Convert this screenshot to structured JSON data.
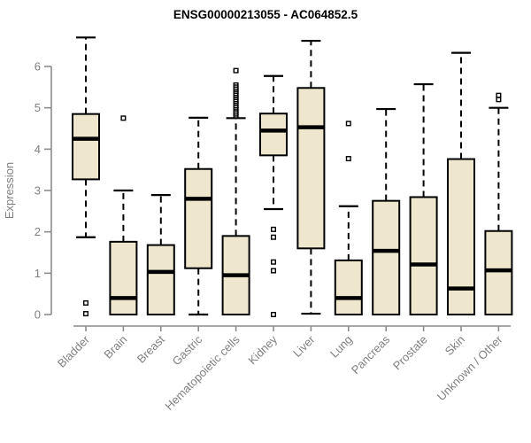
{
  "chart_data": {
    "type": "box",
    "title": "ENSG00000213055 - AC064852.5",
    "ylabel": "Expression",
    "xlabel": "",
    "ylim": [
      0,
      6
    ],
    "yticks": [
      0,
      1,
      2,
      3,
      4,
      5,
      6
    ],
    "grid": false,
    "legend": "none",
    "box_fill": "#EEE7CD",
    "box_stroke": "#000000",
    "median_color": "#000000",
    "axis_color": "#8C8C8C",
    "label_color": "#808080",
    "title_color": "#000000",
    "categories": [
      "Bladder",
      "Brain",
      "Breast",
      "Gastric",
      "Hematopoietic cells",
      "Kidney",
      "Liver",
      "Lung",
      "Pancreas",
      "Prostate",
      "Skin",
      "Unknown / Other"
    ],
    "series": [
      {
        "name": "Bladder",
        "low": 1.87,
        "q1": 3.27,
        "median": 4.25,
        "q3": 4.85,
        "high": 6.7,
        "outliers": [
          0.28,
          0.02
        ]
      },
      {
        "name": "Brain",
        "low": 0.0,
        "q1": 0.0,
        "median": 0.4,
        "q3": 1.76,
        "high": 3.0,
        "outliers": [
          4.75
        ]
      },
      {
        "name": "Breast",
        "low": 0.0,
        "q1": 0.0,
        "median": 1.03,
        "q3": 1.68,
        "high": 2.89,
        "outliers": []
      },
      {
        "name": "Gastric",
        "low": 0.0,
        "q1": 1.12,
        "median": 2.8,
        "q3": 3.52,
        "high": 4.76,
        "outliers": []
      },
      {
        "name": "Hematopoietic cells",
        "low": 0.0,
        "q1": 0.0,
        "median": 0.95,
        "q3": 1.9,
        "high": 4.75,
        "outliers": [
          5.9,
          5.55,
          5.5,
          5.45,
          5.4,
          5.35,
          5.3,
          5.25,
          5.2,
          5.15,
          5.1,
          5.05,
          5.0,
          4.95,
          4.9,
          4.85,
          4.8
        ]
      },
      {
        "name": "Kidney",
        "low": 2.55,
        "q1": 3.85,
        "median": 4.45,
        "q3": 4.86,
        "high": 5.77,
        "outliers": [
          2.06,
          1.87,
          1.27,
          1.06,
          0.0
        ]
      },
      {
        "name": "Liver",
        "low": 0.02,
        "q1": 1.6,
        "median": 4.53,
        "q3": 5.48,
        "high": 6.62,
        "outliers": []
      },
      {
        "name": "Lung",
        "low": 0.0,
        "q1": 0.0,
        "median": 0.4,
        "q3": 1.31,
        "high": 2.62,
        "outliers": [
          4.62,
          3.77
        ]
      },
      {
        "name": "Pancreas",
        "low": 0.0,
        "q1": 0.0,
        "median": 1.54,
        "q3": 2.75,
        "high": 4.97,
        "outliers": []
      },
      {
        "name": "Prostate",
        "low": 0.0,
        "q1": 0.0,
        "median": 1.21,
        "q3": 2.84,
        "high": 5.57,
        "outliers": []
      },
      {
        "name": "Skin",
        "low": 0.0,
        "q1": 0.0,
        "median": 0.63,
        "q3": 3.76,
        "high": 6.33,
        "outliers": []
      },
      {
        "name": "Unknown / Other",
        "low": 0.0,
        "q1": 0.0,
        "median": 1.07,
        "q3": 2.02,
        "high": 5.0,
        "outliers": [
          5.3,
          5.2
        ]
      }
    ]
  }
}
